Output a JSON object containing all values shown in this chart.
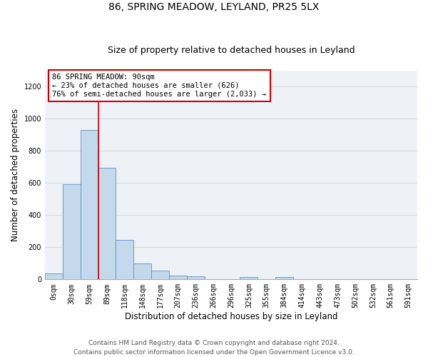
{
  "title1": "86, SPRING MEADOW, LEYLAND, PR25 5LX",
  "title2": "Size of property relative to detached houses in Leyland",
  "xlabel": "Distribution of detached houses by size in Leyland",
  "ylabel": "Number of detached properties",
  "bar_labels": [
    "0sqm",
    "30sqm",
    "59sqm",
    "89sqm",
    "118sqm",
    "148sqm",
    "177sqm",
    "207sqm",
    "236sqm",
    "266sqm",
    "296sqm",
    "325sqm",
    "355sqm",
    "384sqm",
    "414sqm",
    "443sqm",
    "473sqm",
    "502sqm",
    "532sqm",
    "561sqm",
    "591sqm"
  ],
  "bar_values": [
    35,
    595,
    930,
    695,
    245,
    100,
    55,
    25,
    20,
    0,
    0,
    15,
    0,
    15,
    0,
    0,
    0,
    0,
    0,
    0,
    0
  ],
  "bar_color": "#c5d9ed",
  "bar_edge_color": "#5a8fc3",
  "ylim": [
    0,
    1300
  ],
  "yticks": [
    0,
    200,
    400,
    600,
    800,
    1000,
    1200
  ],
  "property_bin_index": 2,
  "annotation_text": "86 SPRING MEADOW: 90sqm\n← 23% of detached houses are smaller (626)\n76% of semi-detached houses are larger (2,033) →",
  "annotation_box_color": "#ffffff",
  "annotation_box_edge_color": "#cc0000",
  "vline_color": "#cc0000",
  "footnote": "Contains HM Land Registry data © Crown copyright and database right 2024.\nContains public sector information licensed under the Open Government Licence v3.0.",
  "title1_fontsize": 10,
  "title2_fontsize": 9,
  "xlabel_fontsize": 8.5,
  "ylabel_fontsize": 8.5,
  "tick_fontsize": 7,
  "annotation_fontsize": 7.5,
  "footnote_fontsize": 6.5,
  "grid_color": "#d0d8e0",
  "bg_color": "#eef2f7"
}
